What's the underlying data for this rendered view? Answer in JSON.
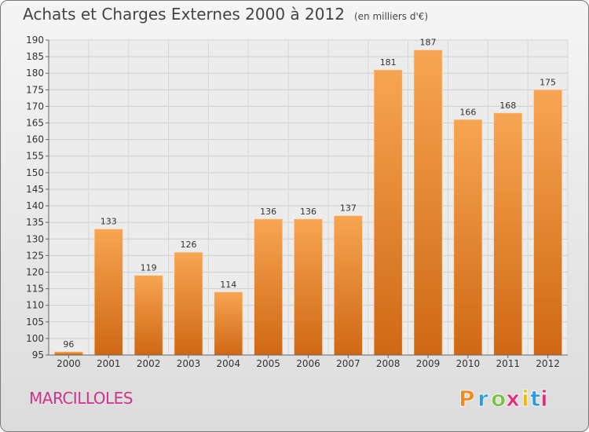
{
  "title": "Achats et Charges Externes 2000 à 2012",
  "subtitle": "(en milliers d'€)",
  "commune": "MARCILLOLES",
  "logo": {
    "letters": [
      "P",
      "r",
      "o",
      "x",
      "i",
      "t",
      "i"
    ],
    "colors": [
      "#f08a1e",
      "#2a9be0",
      "#7cc242",
      "#e62d7a",
      "#f5b800",
      "#2a9be0",
      "#e62d7a"
    ]
  },
  "chart_data": {
    "type": "bar",
    "title": "Achats et Charges Externes 2000 à 2012",
    "subtitle": "(en milliers d'€)",
    "categories": [
      "2000",
      "2001",
      "2002",
      "2003",
      "2004",
      "2005",
      "2006",
      "2007",
      "2008",
      "2009",
      "2010",
      "2011",
      "2012"
    ],
    "values": [
      96,
      133,
      119,
      126,
      114,
      136,
      136,
      137,
      181,
      187,
      166,
      168,
      175
    ],
    "ylim": [
      95,
      190
    ],
    "yticks": [
      95,
      100,
      105,
      110,
      115,
      120,
      125,
      130,
      135,
      140,
      145,
      150,
      155,
      160,
      165,
      170,
      175,
      180,
      185,
      190
    ],
    "grid": true,
    "bar_color": "#f08a2c",
    "data_labels": true
  }
}
